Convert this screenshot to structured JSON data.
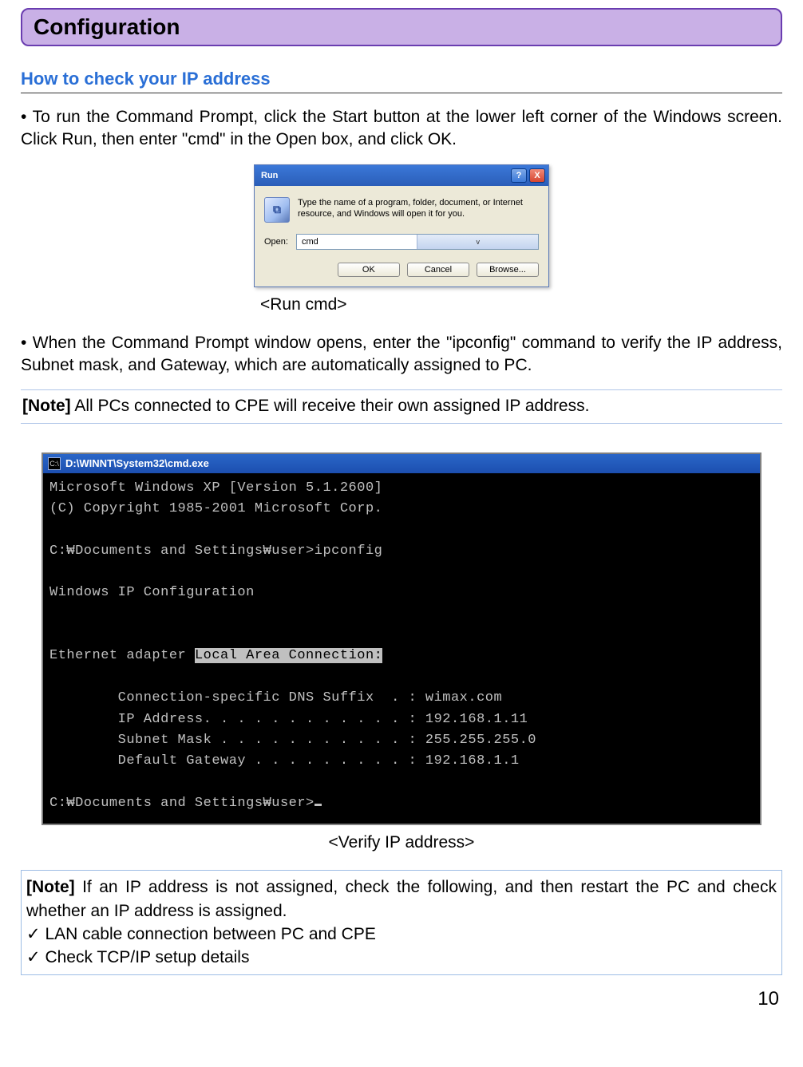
{
  "header": {
    "title": "Configuration"
  },
  "section": {
    "title": "How to check your IP address"
  },
  "para1": "• To run the Command Prompt, click the Start button at the lower left corner of the Windows screen. Click Run, then enter \"cmd\" in the Open box, and click OK.",
  "run_dialog": {
    "title": "Run",
    "description": "Type the name of a program, folder, document, or Internet resource, and Windows will open it for you.",
    "open_label": "Open:",
    "open_value": "cmd",
    "buttons": {
      "ok": "OK",
      "cancel": "Cancel",
      "browse": "Browse..."
    },
    "help_glyph": "?",
    "close_glyph": "X",
    "dropdown_glyph": "v"
  },
  "caption1": "<Run cmd>",
  "para2": "• When the Command Prompt window opens, enter the \"ipconfig\" command to verify the IP address, Subnet mask, and Gateway, which are automatically assigned to PC.",
  "note1_label": "[Note]",
  "note1_text": " All PCs connected to CPE will receive their own assigned IP address.",
  "cmd": {
    "title_path": "D:\\WINNT\\System32\\cmd.exe",
    "icon_text": "C:\\",
    "line1": "Microsoft Windows XP [Version 5.1.2600]",
    "line2": "(C) Copyright 1985-2001 Microsoft Corp.",
    "prompt1": "C:₩Documents and Settings₩user>ipconfig",
    "heading": "Windows IP Configuration",
    "adapter_prefix": "Ethernet adapter ",
    "adapter_hl": "Local Area Connection:",
    "dns": "        Connection-specific DNS Suffix  . : wimax.com",
    "ip": "        IP Address. . . . . . . . . . . . : 192.168.1.11",
    "mask": "        Subnet Mask . . . . . . . . . . . : 255.255.255.0",
    "gw": "        Default Gateway . . . . . . . . . : 192.168.1.1",
    "prompt2": "C:₩Documents and Settings₩user>"
  },
  "caption2": "<Verify IP address>",
  "note2": {
    "label": "[Note]",
    "text": " If an IP address is not assigned, check the following, and then restart the PC and check whether an IP address is assigned.",
    "item1": " LAN cable connection between PC and CPE",
    "item2": " Check TCP/IP setup details"
  },
  "page_number": "10"
}
